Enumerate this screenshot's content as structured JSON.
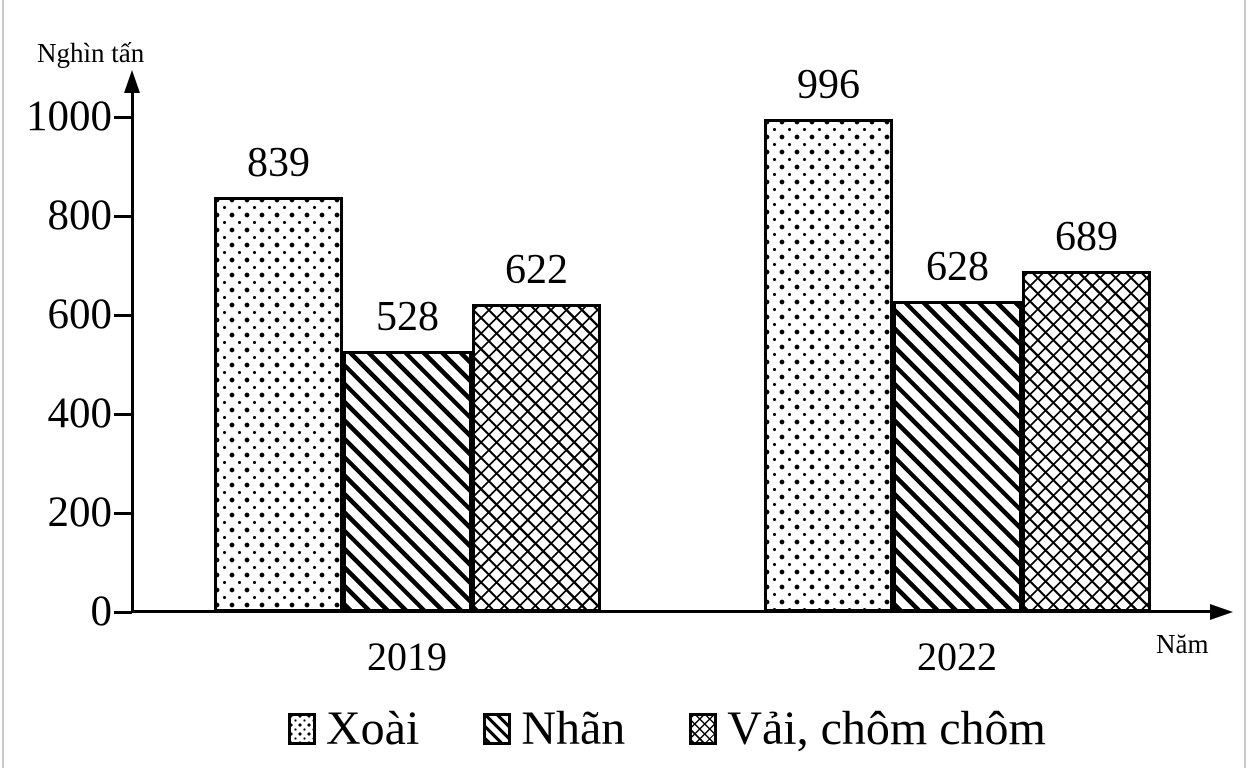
{
  "chart_data": {
    "type": "bar",
    "title": "",
    "unit_label": "Nghìn tấn",
    "x_axis_label": "Năm",
    "categories": [
      "2019",
      "2022"
    ],
    "series": [
      {
        "name": "Xoài",
        "pattern": "dots",
        "values": [
          839,
          996
        ]
      },
      {
        "name": "Nhãn",
        "pattern": "stripes",
        "values": [
          528,
          628
        ]
      },
      {
        "name": "Vải, chôm chôm",
        "pattern": "crosshatch",
        "values": [
          622,
          689
        ]
      }
    ],
    "y_ticks": [
      0,
      200,
      400,
      600,
      800,
      1000
    ],
    "ylim": [
      0,
      1000
    ],
    "grid": false,
    "legend_position": "bottom",
    "bar_border_color": "#000000",
    "background_color": "#ffffff"
  }
}
